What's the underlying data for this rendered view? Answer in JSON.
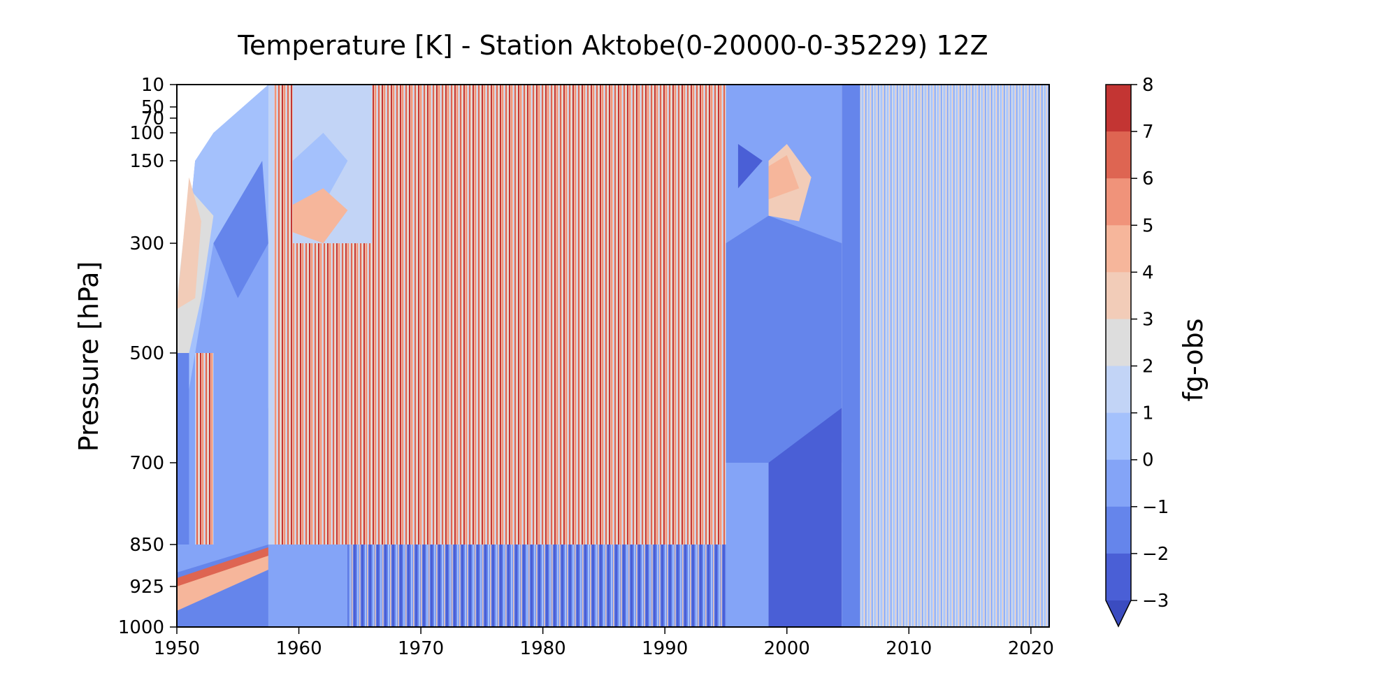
{
  "chart_data": {
    "type": "heatmap",
    "title": "Temperature [K] - Station Aktobe(0-20000-0-35229) 12Z",
    "xlabel": "",
    "ylabel": "Pressure [hPa]",
    "xlim": [
      1950,
      2021.5
    ],
    "x_ticks": [
      1950,
      1960,
      1970,
      1980,
      1990,
      2000,
      2010,
      2020
    ],
    "y_ticks": [
      10,
      50,
      70,
      100,
      150,
      300,
      500,
      700,
      850,
      925,
      1000
    ],
    "y_scale": "pressure levels (inverted, 10 at top, 1000 at bottom)",
    "grid": false,
    "colorbar": {
      "label": "fg-obs",
      "ticks": [
        "8",
        "7",
        "6",
        "5",
        "4",
        "3",
        "2",
        "1",
        "0",
        "−1",
        "−2",
        "−3"
      ],
      "levels": [
        -3,
        -2,
        -1,
        0,
        1,
        2,
        3,
        4,
        5,
        6,
        7,
        8
      ],
      "extend": "min",
      "colors": [
        "#4a5fd6",
        "#6585eb",
        "#84a4f7",
        "#a4c1fc",
        "#c2d4f6",
        "#dddddd",
        "#f2ccb8",
        "#f6b69b",
        "#f0937a",
        "#de6552",
        "#c33533"
      ]
    },
    "regions": [
      {
        "x_range": [
          1950,
          1957.5
        ],
        "y_range": [
          10,
          1000
        ],
        "pattern": "mostly -1 to 2, red wedge near 925 hPa; blank area upper-left"
      },
      {
        "x_range": [
          1957.5,
          1966
        ],
        "y_range": [
          10,
          850
        ],
        "pattern": "banded 0 to 4, mixed red lines"
      },
      {
        "x_range": [
          1966,
          1995
        ],
        "y_range": [
          10,
          850
        ],
        "pattern": "dense vertical stripes, values -1 to 8, predominantly 2 to 6"
      },
      {
        "x_range": [
          1964,
          1995
        ],
        "y_range": [
          850,
          1000
        ],
        "pattern": "strongly negative -3 to -1 with stripes"
      },
      {
        "x_range": [
          1995,
          2004.5
        ],
        "y_range": [
          10,
          1000
        ],
        "pattern": "smooth -3 to 1, warm patch 3 to 5 near 150 hPa around 1999"
      },
      {
        "x_range": [
          2004.5,
          2021.5
        ],
        "y_range": [
          10,
          1000
        ],
        "pattern": "fine stripes mostly -1 to 2"
      }
    ]
  }
}
